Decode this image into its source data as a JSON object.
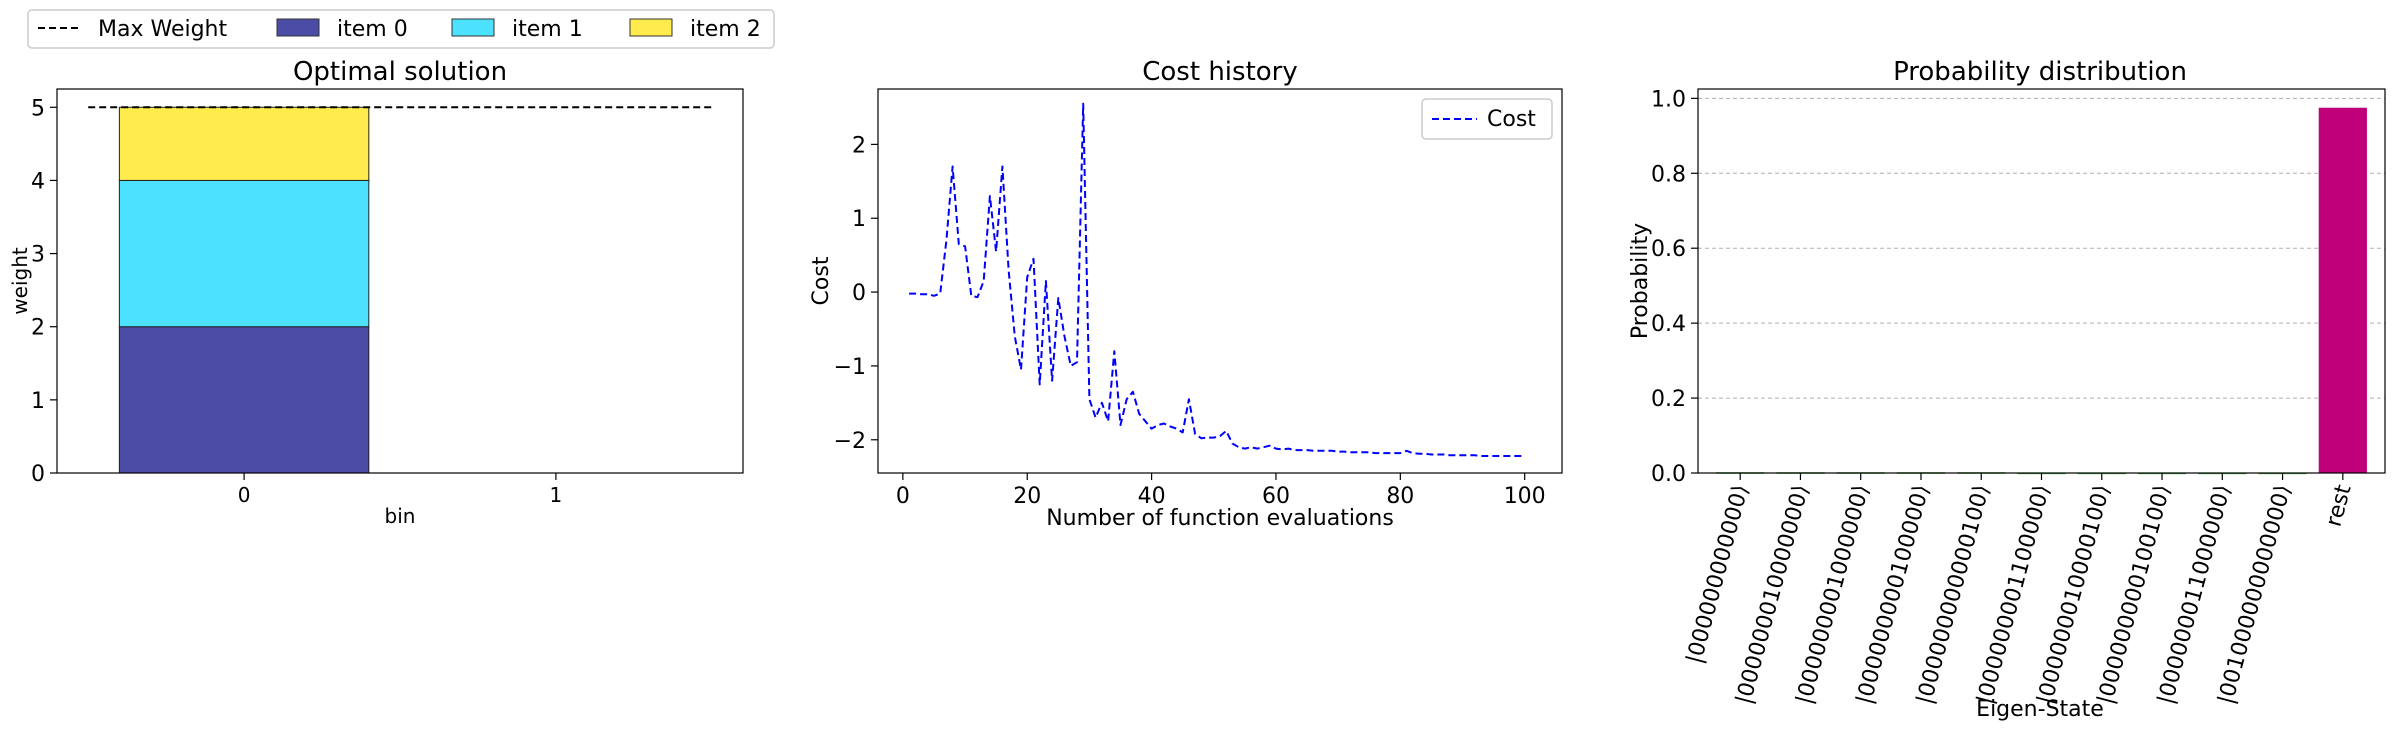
{
  "legend_top": {
    "entries": [
      {
        "label": "Max Weight",
        "kind": "dashed-line",
        "color": "#000000"
      },
      {
        "label": "item 0",
        "kind": "patch",
        "color": "#4b4ca5"
      },
      {
        "label": "item 1",
        "kind": "patch",
        "color": "#4be1ff"
      },
      {
        "label": "item 2",
        "kind": "patch",
        "color": "#ffeb4b"
      }
    ]
  },
  "chart_data": [
    {
      "type": "bar",
      "stacked": true,
      "title": "Optimal solution",
      "xlabel": "bin",
      "ylabel": "weight",
      "categories": [
        "0",
        "1"
      ],
      "series": [
        {
          "name": "item 0",
          "values": [
            2,
            0
          ],
          "color": "#4b4ca5"
        },
        {
          "name": "item 1",
          "values": [
            2,
            0
          ],
          "color": "#4be1ff"
        },
        {
          "name": "item 2",
          "values": [
            1,
            0
          ],
          "color": "#ffeb4b"
        }
      ],
      "reference_line": {
        "name": "Max Weight",
        "y": 5,
        "style": "dashed",
        "color": "#000000"
      },
      "xlim": [
        -0.6,
        1.6
      ],
      "ylim": [
        0,
        5.25
      ],
      "yticks": [
        0,
        1,
        2,
        3,
        4,
        5
      ],
      "grid": false
    },
    {
      "type": "line",
      "title": "Cost history",
      "xlabel": "Number of function evaluations",
      "ylabel": "Cost",
      "legend": "top-right",
      "xlim": [
        -4,
        106
      ],
      "ylim": [
        -2.45,
        2.75
      ],
      "xticks": [
        0,
        20,
        40,
        60,
        80,
        100
      ],
      "yticks": [
        -2,
        -1,
        0,
        1,
        2
      ],
      "grid": false,
      "series": [
        {
          "name": "Cost",
          "style": "dashed",
          "color": "#0000ff",
          "x": [
            1,
            2,
            3,
            4,
            5,
            6,
            7,
            8,
            9,
            10,
            11,
            12,
            13,
            14,
            15,
            16,
            17,
            18,
            19,
            20,
            21,
            22,
            23,
            24,
            25,
            26,
            27,
            28,
            29,
            30,
            31,
            32,
            33,
            34,
            35,
            36,
            37,
            38,
            39,
            40,
            41,
            42,
            43,
            44,
            45,
            46,
            47,
            48,
            49,
            50,
            51,
            52,
            53,
            54,
            55,
            56,
            57,
            58,
            59,
            60,
            61,
            62,
            63,
            64,
            65,
            66,
            67,
            68,
            69,
            70,
            71,
            72,
            73,
            74,
            75,
            76,
            77,
            78,
            79,
            80,
            81,
            82,
            83,
            84,
            85,
            86,
            87,
            88,
            89,
            90,
            91,
            92,
            93,
            94,
            95,
            96,
            97,
            98,
            99,
            100
          ],
          "y": [
            -0.02,
            -0.02,
            -0.03,
            -0.03,
            -0.05,
            -0.02,
            0.7,
            1.7,
            0.65,
            0.62,
            -0.05,
            -0.07,
            0.15,
            1.3,
            0.55,
            1.7,
            0.3,
            -0.6,
            -1.05,
            0.2,
            0.45,
            -1.25,
            0.15,
            -1.2,
            -0.08,
            -0.6,
            -1.0,
            -0.95,
            2.55,
            -1.45,
            -1.7,
            -1.5,
            -1.75,
            -0.8,
            -1.8,
            -1.45,
            -1.35,
            -1.65,
            -1.75,
            -1.85,
            -1.8,
            -1.78,
            -1.82,
            -1.85,
            -1.9,
            -1.45,
            -1.92,
            -1.98,
            -1.97,
            -1.97,
            -1.95,
            -1.88,
            -2.05,
            -2.1,
            -2.12,
            -2.1,
            -2.12,
            -2.1,
            -2.08,
            -2.12,
            -2.13,
            -2.12,
            -2.14,
            -2.14,
            -2.14,
            -2.15,
            -2.15,
            -2.15,
            -2.15,
            -2.16,
            -2.16,
            -2.17,
            -2.17,
            -2.17,
            -2.17,
            -2.18,
            -2.18,
            -2.18,
            -2.18,
            -2.18,
            -2.15,
            -2.18,
            -2.19,
            -2.19,
            -2.2,
            -2.2,
            -2.2,
            -2.21,
            -2.21,
            -2.21,
            -2.21,
            -2.21,
            -2.22,
            -2.22,
            -2.22,
            -2.22,
            -2.22,
            -2.22,
            -2.22,
            -2.22
          ]
        }
      ]
    },
    {
      "type": "bar",
      "title": "Probability distribution",
      "xlabel": "Eigen-State",
      "ylabel": "Probability",
      "categories": [
        "|000000000000⟩",
        "|000000010000000⟩",
        "|000000001000000⟩",
        "|000000000100000⟩",
        "|000000000000100⟩",
        "|000000001100000⟩",
        "|000000010000100⟩",
        "|000000000100100⟩",
        "|000000011000000⟩",
        "|001000000000000⟩",
        "rest"
      ],
      "values": [
        0.002,
        0.002,
        0.002,
        0.002,
        0.002,
        0.001,
        0.001,
        0.001,
        0.001,
        0.001,
        0.975
      ],
      "colors": [
        "#2ca02c",
        "#2ca02c",
        "#2ca02c",
        "#2ca02c",
        "#2ca02c",
        "#2ca02c",
        "#2ca02c",
        "#2ca02c",
        "#2ca02c",
        "#2ca02c",
        "#c0007a"
      ],
      "ylim": [
        0,
        1.025
      ],
      "yticks": [
        "0.0",
        "0.2",
        "0.4",
        "0.6",
        "0.8",
        "1.0"
      ],
      "grid": "y-dashed"
    }
  ]
}
